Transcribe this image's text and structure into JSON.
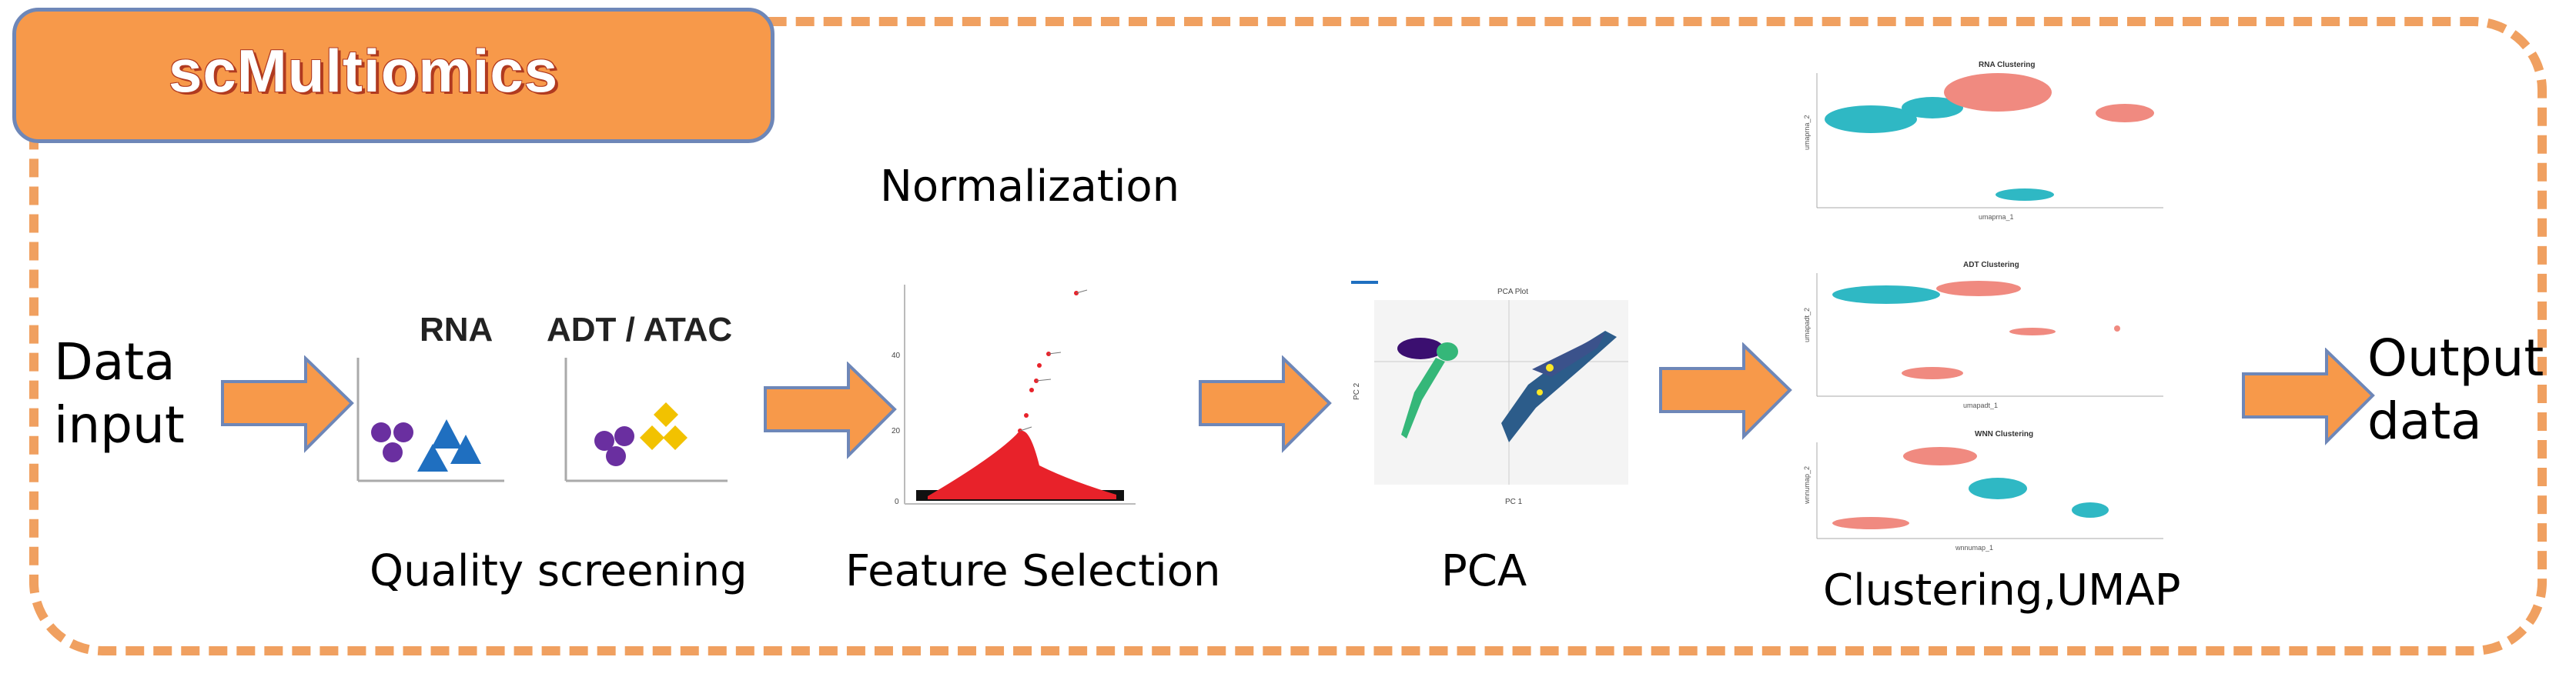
{
  "title": "scMultiomics",
  "steps": {
    "input": {
      "line1": "Data",
      "line2": "input"
    },
    "quality": {
      "label": "Quality screening",
      "rna": "RNA",
      "adt": "ADT / ATAC"
    },
    "normalization": "Normalization",
    "feature": {
      "label": "Feature Selection"
    },
    "pca": {
      "label": "PCA",
      "plot_title": "PCA Plot",
      "xlabel": "PC 1",
      "ylabel": "PC 2"
    },
    "clustering": {
      "label": "Clustering,UMAP",
      "plots": [
        {
          "title": "RNA Clustering",
          "xlabel": "umaprna_1",
          "ylabel": "umaprna_2"
        },
        {
          "title": "ADT Clustering",
          "xlabel": "umapadt_1",
          "ylabel": "umapadt_2"
        },
        {
          "title": "WNN Clustering",
          "xlabel": "wnnumap_1",
          "ylabel": "wnnumap_2"
        }
      ]
    },
    "output": {
      "line1": "Output",
      "line2": "data"
    }
  },
  "colors": {
    "orange": "#f7994a",
    "dash": "#f0a060",
    "purple": "#6a2fa0",
    "blue": "#1f6fc0",
    "yellow": "#f2c200",
    "red": "#e8222a",
    "teal": "#2fb8c4",
    "salmon": "#f08a80"
  }
}
